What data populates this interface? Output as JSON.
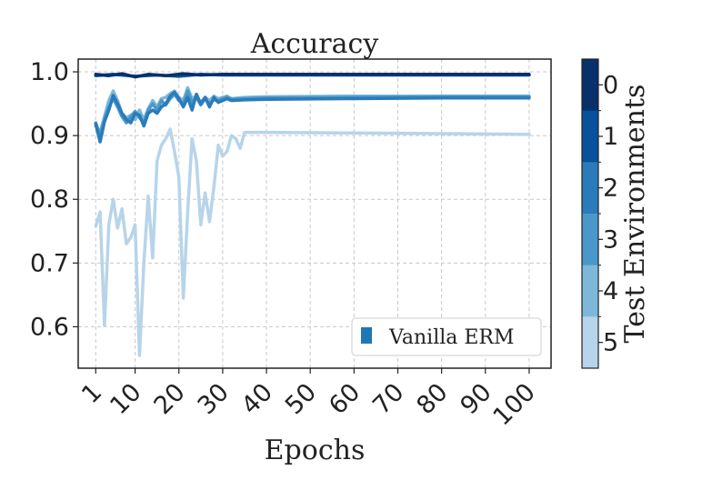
{
  "chart_data": {
    "type": "line",
    "title": "Accuracy",
    "xlabel": "Epochs",
    "ylabel": "",
    "xlim": [
      -3,
      105
    ],
    "ylim": [
      0.535,
      1.02
    ],
    "xticks": [
      1,
      10,
      20,
      30,
      40,
      50,
      60,
      70,
      80,
      90,
      100
    ],
    "xtick_labels": [
      "1",
      "10",
      "20",
      "30",
      "40",
      "50",
      "60",
      "70",
      "80",
      "90",
      "100"
    ],
    "yticks": [
      0.6,
      0.7,
      0.8,
      0.9,
      1.0
    ],
    "ytick_labels": [
      "0.6",
      "0.7",
      "0.8",
      "0.9",
      "1.0"
    ],
    "grid": true,
    "legend": {
      "position": "lower-right",
      "entries": [
        {
          "label": "Vanilla ERM",
          "color": "#1f77b4"
        }
      ]
    },
    "colorbar": {
      "label": "Test Environments",
      "ticks": [
        "0",
        "1",
        "2",
        "3",
        "4",
        "5"
      ],
      "colors": [
        "#08306b",
        "#08519c",
        "#2b7bba",
        "#4a98c9",
        "#7db8da",
        "#b7d4ea"
      ]
    },
    "series": [
      {
        "name": "0",
        "color": "#08306b",
        "points": [
          [
            1,
            0.996
          ],
          [
            4,
            0.994
          ],
          [
            7,
            0.997
          ],
          [
            10,
            0.992
          ],
          [
            13,
            0.996
          ],
          [
            17,
            0.994
          ],
          [
            21,
            0.997
          ],
          [
            25,
            0.995
          ],
          [
            30,
            0.996
          ],
          [
            40,
            0.996
          ],
          [
            60,
            0.996
          ],
          [
            80,
            0.996
          ],
          [
            100,
            0.996
          ]
        ]
      },
      {
        "name": "1",
        "color": "#08519c",
        "points": [
          [
            1,
            0.994
          ],
          [
            5,
            0.996
          ],
          [
            10,
            0.993
          ],
          [
            15,
            0.995
          ],
          [
            20,
            0.993
          ],
          [
            25,
            0.996
          ],
          [
            30,
            0.995
          ],
          [
            40,
            0.995
          ],
          [
            70,
            0.995
          ],
          [
            100,
            0.995
          ]
        ]
      },
      {
        "name": "2",
        "color": "#2b7bba",
        "points": [
          [
            1,
            0.918
          ],
          [
            2,
            0.89
          ],
          [
            3,
            0.922
          ],
          [
            4,
            0.94
          ],
          [
            5,
            0.963
          ],
          [
            6,
            0.95
          ],
          [
            7,
            0.935
          ],
          [
            8,
            0.925
          ],
          [
            9,
            0.92
          ],
          [
            10,
            0.935
          ],
          [
            11,
            0.932
          ],
          [
            12,
            0.915
          ],
          [
            13,
            0.935
          ],
          [
            14,
            0.94
          ],
          [
            15,
            0.935
          ],
          [
            16,
            0.945
          ],
          [
            17,
            0.95
          ],
          [
            18,
            0.962
          ],
          [
            19,
            0.968
          ],
          [
            20,
            0.958
          ],
          [
            21,
            0.945
          ],
          [
            22,
            0.96
          ],
          [
            23,
            0.94
          ],
          [
            24,
            0.965
          ],
          [
            25,
            0.95
          ],
          [
            26,
            0.96
          ],
          [
            27,
            0.945
          ],
          [
            28,
            0.96
          ],
          [
            29,
            0.952
          ],
          [
            30,
            0.955
          ],
          [
            31,
            0.958
          ],
          [
            32,
            0.955
          ],
          [
            35,
            0.956
          ],
          [
            40,
            0.957
          ],
          [
            60,
            0.958
          ],
          [
            80,
            0.959
          ],
          [
            100,
            0.959
          ]
        ]
      },
      {
        "name": "3",
        "color": "#4a98c9",
        "points": [
          [
            1,
            0.92
          ],
          [
            2,
            0.9
          ],
          [
            3,
            0.925
          ],
          [
            4,
            0.945
          ],
          [
            5,
            0.958
          ],
          [
            6,
            0.945
          ],
          [
            7,
            0.93
          ],
          [
            8,
            0.92
          ],
          [
            9,
            0.93
          ],
          [
            10,
            0.938
          ],
          [
            11,
            0.928
          ],
          [
            12,
            0.92
          ],
          [
            13,
            0.94
          ],
          [
            14,
            0.95
          ],
          [
            15,
            0.94
          ],
          [
            16,
            0.955
          ],
          [
            17,
            0.948
          ],
          [
            18,
            0.958
          ],
          [
            19,
            0.965
          ],
          [
            20,
            0.955
          ],
          [
            21,
            0.95
          ],
          [
            22,
            0.97
          ],
          [
            23,
            0.952
          ],
          [
            24,
            0.96
          ],
          [
            25,
            0.948
          ],
          [
            26,
            0.958
          ],
          [
            27,
            0.95
          ],
          [
            28,
            0.956
          ],
          [
            29,
            0.955
          ],
          [
            30,
            0.958
          ],
          [
            31,
            0.96
          ],
          [
            32,
            0.957
          ],
          [
            35,
            0.958
          ],
          [
            40,
            0.959
          ],
          [
            60,
            0.96
          ],
          [
            80,
            0.961
          ],
          [
            100,
            0.961
          ]
        ]
      },
      {
        "name": "4",
        "color": "#7db8da",
        "points": [
          [
            1,
            0.915
          ],
          [
            2,
            0.905
          ],
          [
            3,
            0.93
          ],
          [
            4,
            0.955
          ],
          [
            5,
            0.97
          ],
          [
            6,
            0.955
          ],
          [
            7,
            0.935
          ],
          [
            8,
            0.928
          ],
          [
            9,
            0.932
          ],
          [
            10,
            0.925
          ],
          [
            11,
            0.94
          ],
          [
            12,
            0.925
          ],
          [
            13,
            0.942
          ],
          [
            14,
            0.955
          ],
          [
            15,
            0.945
          ],
          [
            16,
            0.958
          ],
          [
            17,
            0.96
          ],
          [
            18,
            0.966
          ],
          [
            19,
            0.97
          ],
          [
            20,
            0.96
          ],
          [
            21,
            0.955
          ],
          [
            22,
            0.975
          ],
          [
            23,
            0.958
          ],
          [
            24,
            0.962
          ],
          [
            25,
            0.952
          ],
          [
            26,
            0.96
          ],
          [
            27,
            0.955
          ],
          [
            28,
            0.962
          ],
          [
            29,
            0.958
          ],
          [
            30,
            0.96
          ],
          [
            31,
            0.962
          ],
          [
            32,
            0.958
          ],
          [
            35,
            0.96
          ],
          [
            40,
            0.961
          ],
          [
            60,
            0.962
          ],
          [
            80,
            0.962
          ],
          [
            100,
            0.962
          ]
        ]
      },
      {
        "name": "5",
        "color": "#b7d4ea",
        "points": [
          [
            1,
            0.758
          ],
          [
            2,
            0.78
          ],
          [
            3,
            0.602
          ],
          [
            4,
            0.76
          ],
          [
            5,
            0.8
          ],
          [
            6,
            0.755
          ],
          [
            7,
            0.785
          ],
          [
            8,
            0.73
          ],
          [
            9,
            0.74
          ],
          [
            10,
            0.76
          ],
          [
            11,
            0.555
          ],
          [
            12,
            0.7
          ],
          [
            13,
            0.805
          ],
          [
            14,
            0.708
          ],
          [
            15,
            0.86
          ],
          [
            16,
            0.885
          ],
          [
            17,
            0.895
          ],
          [
            18,
            0.91
          ],
          [
            19,
            0.875
          ],
          [
            20,
            0.835
          ],
          [
            21,
            0.645
          ],
          [
            22,
            0.78
          ],
          [
            23,
            0.895
          ],
          [
            24,
            0.86
          ],
          [
            25,
            0.76
          ],
          [
            26,
            0.81
          ],
          [
            27,
            0.765
          ],
          [
            28,
            0.82
          ],
          [
            29,
            0.885
          ],
          [
            30,
            0.868
          ],
          [
            31,
            0.875
          ],
          [
            32,
            0.9
          ],
          [
            33,
            0.895
          ],
          [
            34,
            0.88
          ],
          [
            35,
            0.905
          ],
          [
            40,
            0.905
          ],
          [
            60,
            0.904
          ],
          [
            80,
            0.903
          ],
          [
            100,
            0.902
          ]
        ]
      }
    ]
  }
}
